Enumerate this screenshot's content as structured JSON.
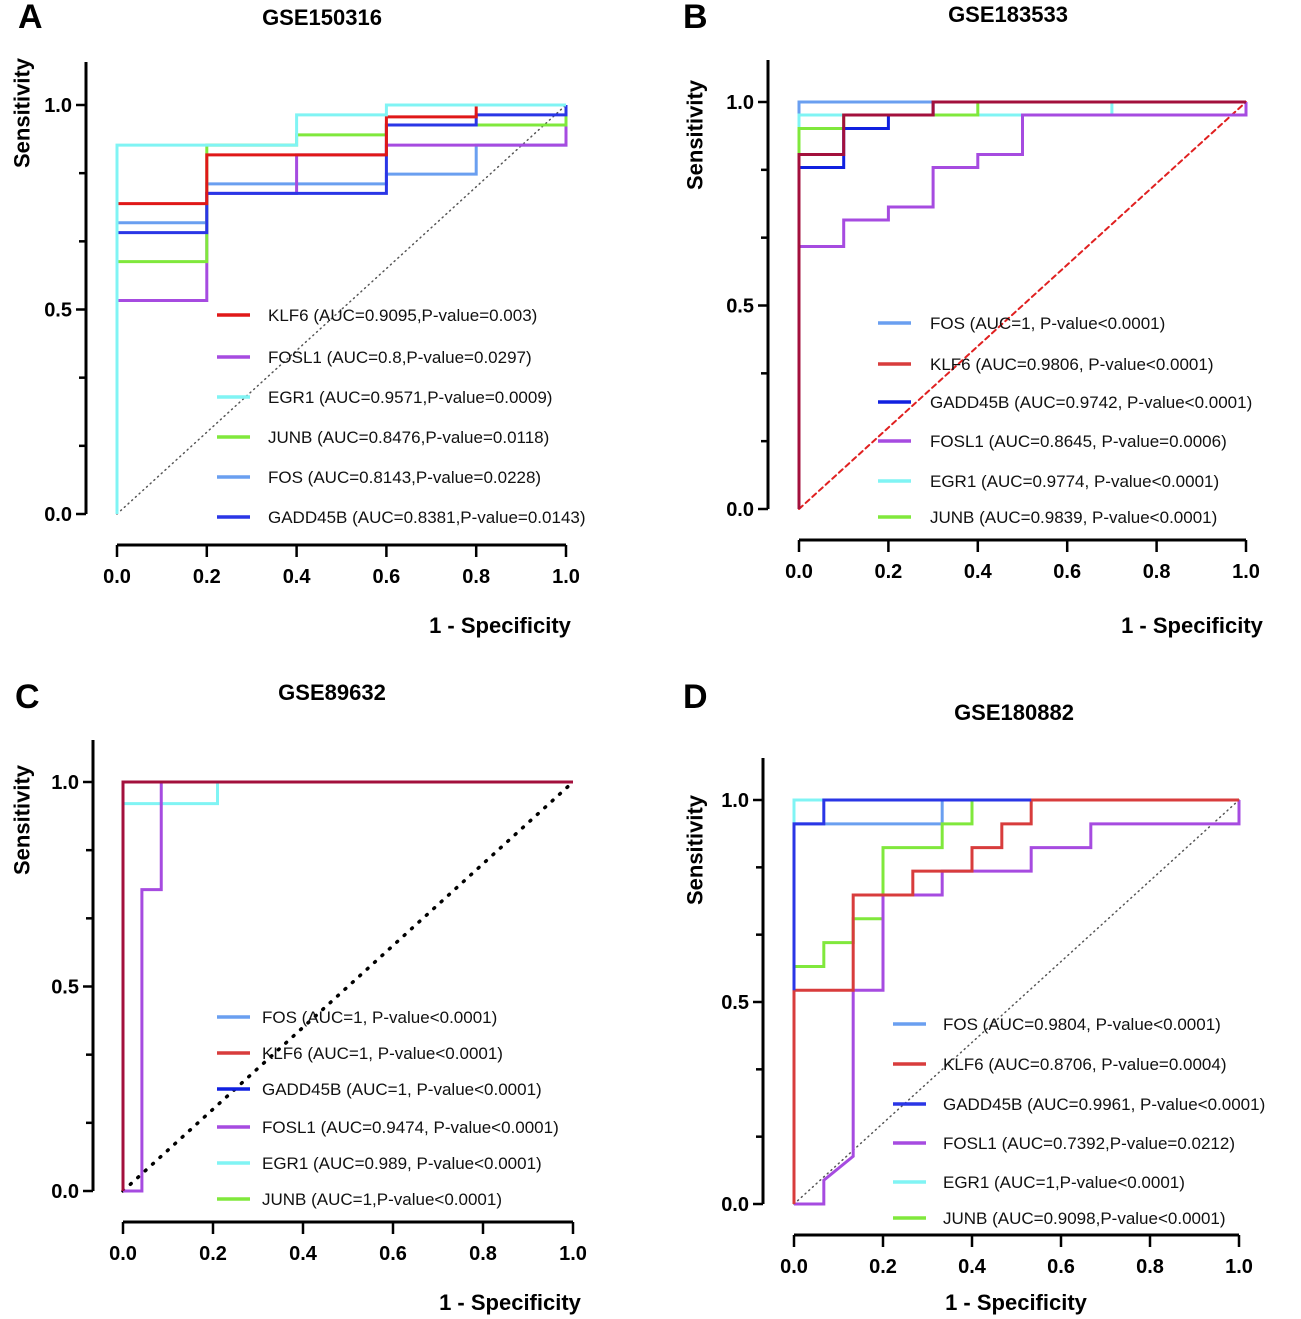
{
  "chart_data": [
    {
      "panel_letter": "A",
      "type": "line",
      "title": "GSE150316",
      "xlabel": "1 - Specificity",
      "ylabel": "Sensitivity",
      "xlim": [
        0,
        1
      ],
      "ylim": [
        0,
        1
      ],
      "x_ticks": [
        "0.0",
        "0.2",
        "0.4",
        "0.6",
        "0.8",
        "1.0"
      ],
      "y_ticks": [
        "0.0",
        "0.5",
        "1.0"
      ],
      "reference_line": {
        "style": "dotted",
        "color": "#555555"
      },
      "series": [
        {
          "name": "FOS",
          "legend_label": "FOS (AUC=0.8143,P-value=0.0228)",
          "color": "#6a9ff0",
          "points": [
            [
              0,
              0
            ],
            [
              0,
              0.712
            ],
            [
              0.2,
              0.712
            ],
            [
              0.2,
              0.807
            ],
            [
              0.6,
              0.807
            ],
            [
              0.6,
              0.831
            ],
            [
              0.8,
              0.831
            ],
            [
              0.8,
              0.902
            ],
            [
              1,
              0.902
            ],
            [
              1,
              1
            ]
          ]
        },
        {
          "name": "FOSL1",
          "legend_label": "FOSL1   (AUC=0.8,P-value=0.0297)",
          "color": "#a64be0",
          "points": [
            [
              0,
              0
            ],
            [
              0,
              0.522
            ],
            [
              0.2,
              0.522
            ],
            [
              0.2,
              0.784
            ],
            [
              0.4,
              0.784
            ],
            [
              0.4,
              0.878
            ],
            [
              0.6,
              0.878
            ],
            [
              0.6,
              0.902
            ],
            [
              1,
              0.902
            ],
            [
              1,
              1
            ]
          ]
        },
        {
          "name": "JUNB",
          "legend_label": "JUNB (AUC=0.8476,P-value=0.0118)",
          "color": "#80e83c",
          "points": [
            [
              0,
              0
            ],
            [
              0,
              0.617
            ],
            [
              0.2,
              0.617
            ],
            [
              0.2,
              0.902
            ],
            [
              0.4,
              0.902
            ],
            [
              0.4,
              0.927
            ],
            [
              0.6,
              0.927
            ],
            [
              0.6,
              0.951
            ],
            [
              1,
              0.951
            ],
            [
              1,
              1
            ]
          ]
        },
        {
          "name": "GADD45B",
          "legend_label": "GADD45B (AUC=0.8381,P-value=0.0143)",
          "color": "#2a36e6",
          "points": [
            [
              0,
              0
            ],
            [
              0,
              0.688
            ],
            [
              0.2,
              0.688
            ],
            [
              0.2,
              0.784
            ],
            [
              0.6,
              0.784
            ],
            [
              0.6,
              0.951
            ],
            [
              0.8,
              0.951
            ],
            [
              0.8,
              0.976
            ],
            [
              1,
              0.976
            ],
            [
              1,
              1
            ]
          ]
        },
        {
          "name": "KLF6",
          "legend_label": "KLF6  (AUC=0.9095,P-value=0.003)",
          "color": "#e01818",
          "points": [
            [
              0,
              0
            ],
            [
              0,
              0.759
            ],
            [
              0.2,
              0.759
            ],
            [
              0.2,
              0.878
            ],
            [
              0.6,
              0.878
            ],
            [
              0.6,
              0.971
            ],
            [
              0.8,
              0.971
            ],
            [
              0.8,
              1
            ],
            [
              1,
              1
            ]
          ]
        },
        {
          "name": "EGR1",
          "legend_label": "EGR1 (AUC=0.9571,P-value=0.0009)",
          "color": "#80f4f4",
          "points": [
            [
              0,
              0
            ],
            [
              0,
              0.902
            ],
            [
              0.4,
              0.902
            ],
            [
              0.4,
              0.976
            ],
            [
              0.6,
              0.976
            ],
            [
              0.6,
              1
            ],
            [
              1,
              1
            ]
          ]
        }
      ],
      "legend_order": [
        "KLF6",
        "FOSL1",
        "EGR1",
        "JUNB",
        "FOS",
        "GADD45B"
      ]
    },
    {
      "panel_letter": "B",
      "type": "line",
      "title": "GSE183533",
      "xlabel": "1 - Specificity",
      "ylabel": "Sensitivity",
      "xlim": [
        0,
        1
      ],
      "ylim": [
        0,
        1
      ],
      "x_ticks": [
        "0.0",
        "0.2",
        "0.4",
        "0.6",
        "0.8",
        "1.0"
      ],
      "y_ticks": [
        "0.0",
        "0.5",
        "1.0"
      ],
      "reference_line": {
        "style": "dashed",
        "color": "#e02020"
      },
      "series": [
        {
          "name": "FOS",
          "legend_label": "FOS (AUC=1, P-value<0.0001)",
          "color": "#6a9ff0",
          "points": [
            [
              0,
              0
            ],
            [
              0,
              1
            ],
            [
              1,
              1
            ]
          ]
        },
        {
          "name": "EGR1",
          "legend_label": "EGR1  (AUC=0.9774, P-value<0.0001)",
          "color": "#80f4f4",
          "points": [
            [
              0,
              0
            ],
            [
              0,
              0.968
            ],
            [
              0.7,
              0.968
            ],
            [
              0.7,
              1
            ],
            [
              1,
              1
            ]
          ]
        },
        {
          "name": "JUNB",
          "legend_label": "JUNB (AUC=0.9839, P-value<0.0001)",
          "color": "#80e83c",
          "points": [
            [
              0,
              0
            ],
            [
              0,
              0.935
            ],
            [
              0.1,
              0.935
            ],
            [
              0.1,
              0.968
            ],
            [
              0.4,
              0.968
            ],
            [
              0.4,
              1
            ],
            [
              1,
              1
            ]
          ]
        },
        {
          "name": "FOSL1",
          "legend_label": "FOSL1  (AUC=0.8645, P-value=0.0006)",
          "color": "#a64be0",
          "points": [
            [
              0,
              0
            ],
            [
              0,
              0.645
            ],
            [
              0.1,
              0.645
            ],
            [
              0.1,
              0.71
            ],
            [
              0.2,
              0.71
            ],
            [
              0.2,
              0.742
            ],
            [
              0.3,
              0.742
            ],
            [
              0.3,
              0.839
            ],
            [
              0.4,
              0.839
            ],
            [
              0.4,
              0.871
            ],
            [
              0.5,
              0.871
            ],
            [
              0.5,
              0.968
            ],
            [
              1,
              0.968
            ],
            [
              1,
              1
            ]
          ]
        },
        {
          "name": "GADD45B",
          "legend_label": "GADD45B (AUC=0.9742, P-value<0.0001)",
          "color": "#1020e0",
          "points": [
            [
              0,
              0
            ],
            [
              0,
              0.839
            ],
            [
              0.1,
              0.839
            ],
            [
              0.1,
              0.935
            ],
            [
              0.2,
              0.935
            ],
            [
              0.2,
              0.968
            ],
            [
              0.3,
              0.968
            ],
            [
              0.3,
              1
            ],
            [
              1,
              1
            ]
          ]
        },
        {
          "name": "KLF6",
          "legend_label": "KLF6 (AUC=0.9806, P-value<0.0001)",
          "color": "#a3103c",
          "points": [
            [
              0,
              0
            ],
            [
              0,
              0.871
            ],
            [
              0.1,
              0.871
            ],
            [
              0.1,
              0.968
            ],
            [
              0.3,
              0.968
            ],
            [
              0.3,
              1
            ],
            [
              1,
              1
            ]
          ]
        }
      ],
      "legend_colors": {
        "KLF6": "#d83c3c"
      },
      "legend_order": [
        "FOS",
        "KLF6",
        "GADD45B",
        "FOSL1",
        "EGR1",
        "JUNB"
      ]
    },
    {
      "panel_letter": "C",
      "type": "line",
      "title": "GSE89632",
      "xlabel": "1 - Specificity",
      "ylabel": "Sensitivity",
      "xlim": [
        0,
        1
      ],
      "ylim": [
        0,
        1
      ],
      "x_ticks": [
        "0.0",
        "0.2",
        "0.4",
        "0.6",
        "0.8",
        "1.0"
      ],
      "y_ticks": [
        "0.0",
        "0.5",
        "1.0"
      ],
      "reference_line": {
        "style": "dotted-bold",
        "color": "#000000"
      },
      "series": [
        {
          "name": "FOS",
          "legend_label": "FOS  (AUC=1, P-value<0.0001)",
          "color": "#6a9ff0",
          "points": [
            [
              0,
              0
            ],
            [
              0,
              1
            ],
            [
              1,
              1
            ]
          ]
        },
        {
          "name": "JUNB",
          "legend_label": "JUNB   (AUC=1,P-value<0.0001)",
          "color": "#80e83c",
          "points": [
            [
              0,
              0
            ],
            [
              0,
              1
            ],
            [
              1,
              1
            ]
          ]
        },
        {
          "name": "GADD45B",
          "legend_label": "GADD45B  (AUC=1, P-value<0.0001)",
          "color": "#1020e0",
          "points": [
            [
              0,
              0
            ],
            [
              0,
              1
            ],
            [
              1,
              1
            ]
          ]
        },
        {
          "name": "EGR1",
          "legend_label": "EGR1  (AUC=0.989, P-value<0.0001)",
          "color": "#80f4f4",
          "points": [
            [
              0,
              0
            ],
            [
              0,
              0.947
            ],
            [
              0.21,
              0.947
            ],
            [
              0.21,
              1
            ],
            [
              1,
              1
            ]
          ]
        },
        {
          "name": "FOSL1",
          "legend_label": "FOSL1  (AUC=0.9474, P-value<0.0001)",
          "color": "#a64be0",
          "points": [
            [
              0,
              0
            ],
            [
              0.042,
              0
            ],
            [
              0.042,
              0.737
            ],
            [
              0.085,
              0.737
            ],
            [
              0.085,
              1
            ],
            [
              1,
              1
            ]
          ]
        },
        {
          "name": "KLF6",
          "legend_label": "KLF6  (AUC=1, P-value<0.0001)",
          "color": "#a3103c",
          "points": [
            [
              0,
              0
            ],
            [
              0,
              1
            ],
            [
              1,
              1
            ]
          ]
        }
      ],
      "legend_colors": {
        "KLF6": "#d83c3c"
      },
      "legend_order": [
        "FOS",
        "KLF6",
        "GADD45B",
        "FOSL1",
        "EGR1",
        "JUNB"
      ]
    },
    {
      "panel_letter": "D",
      "type": "line",
      "title": "GSE180882",
      "xlabel": "1 - Specificity",
      "ylabel": "Sensitivity",
      "xlim": [
        0,
        1
      ],
      "ylim": [
        0,
        1
      ],
      "x_ticks": [
        "0.0",
        "0.2",
        "0.4",
        "0.6",
        "0.8",
        "1.0"
      ],
      "y_ticks": [
        "0.0",
        "0.5",
        "1.0"
      ],
      "reference_line": {
        "style": "dotted",
        "color": "#555555"
      },
      "series": [
        {
          "name": "EGR1",
          "legend_label": "EGR1  (AUC=1,P-value<0.0001)",
          "color": "#80f4f4",
          "points": [
            [
              0,
              0
            ],
            [
              0,
              1
            ],
            [
              1,
              1
            ]
          ]
        },
        {
          "name": "FOS",
          "legend_label": "FOS (AUC=0.9804, P-value<0.0001)",
          "color": "#6a9ff0",
          "points": [
            [
              0,
              0
            ],
            [
              0,
              0.941
            ],
            [
              0.333,
              0.941
            ],
            [
              0.333,
              1
            ],
            [
              1,
              1
            ]
          ]
        },
        {
          "name": "JUNB",
          "legend_label": "JUNB (AUC=0.9098,P-value<0.0001)",
          "color": "#80e83c",
          "points": [
            [
              0,
              0
            ],
            [
              0,
              0.588
            ],
            [
              0.067,
              0.588
            ],
            [
              0.067,
              0.647
            ],
            [
              0.133,
              0.647
            ],
            [
              0.133,
              0.706
            ],
            [
              0.2,
              0.706
            ],
            [
              0.2,
              0.882
            ],
            [
              0.333,
              0.882
            ],
            [
              0.333,
              0.941
            ],
            [
              0.4,
              0.941
            ],
            [
              0.4,
              1
            ],
            [
              1,
              1
            ]
          ]
        },
        {
          "name": "FOSL1",
          "legend_label": "FOSL1  (AUC=0.7392,P-value=0.0212)",
          "color": "#a64be0",
          "points": [
            [
              0,
              0
            ],
            [
              0.067,
              0
            ],
            [
              0.067,
              0.059
            ],
            [
              0.133,
              0.118
            ],
            [
              0.133,
              0.529
            ],
            [
              0.2,
              0.529
            ],
            [
              0.2,
              0.765
            ],
            [
              0.333,
              0.765
            ],
            [
              0.333,
              0.824
            ],
            [
              0.533,
              0.824
            ],
            [
              0.533,
              0.882
            ],
            [
              0.667,
              0.882
            ],
            [
              0.667,
              0.941
            ],
            [
              1,
              0.941
            ],
            [
              1,
              1
            ]
          ]
        },
        {
          "name": "KLF6",
          "legend_label": "KLF6 (AUC=0.8706, P-value=0.0004)",
          "color": "#d83c3c",
          "points": [
            [
              0,
              0
            ],
            [
              0,
              0.529
            ],
            [
              0.133,
              0.529
            ],
            [
              0.133,
              0.765
            ],
            [
              0.267,
              0.765
            ],
            [
              0.267,
              0.824
            ],
            [
              0.4,
              0.824
            ],
            [
              0.4,
              0.882
            ],
            [
              0.467,
              0.882
            ],
            [
              0.467,
              0.941
            ],
            [
              0.533,
              0.941
            ],
            [
              0.533,
              1
            ],
            [
              1,
              1
            ]
          ]
        },
        {
          "name": "GADD45B",
          "legend_label": "GADD45B (AUC=0.9961, P-value<0.0001)",
          "color": "#2a36e6",
          "points": [
            [
              0,
              0.529
            ],
            [
              0,
              0.941
            ],
            [
              0.067,
              0.941
            ],
            [
              0.067,
              1
            ],
            [
              0.533,
              1
            ]
          ]
        }
      ],
      "legend_order": [
        "FOS",
        "KLF6",
        "GADD45B",
        "FOSL1",
        "EGR1",
        "JUNB"
      ]
    }
  ]
}
